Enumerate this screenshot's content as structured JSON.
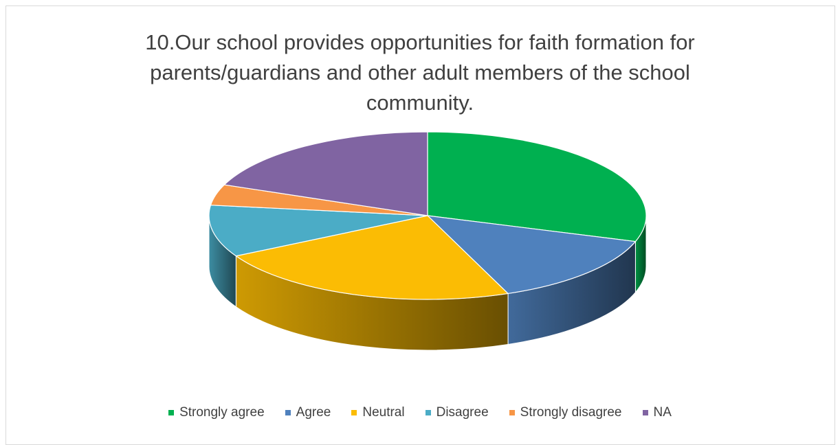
{
  "chart_data": {
    "type": "pie",
    "title_lines": [
      "10.Our school provides opportunities for faith formation for",
      "parents/guardians and other adult members of the school",
      "community."
    ],
    "categories": [
      "Strongly agree",
      "Agree",
      "Neutral",
      "Disagree",
      "Strongly disagree",
      "NA"
    ],
    "values": [
      30,
      14,
      23,
      10,
      4,
      19
    ],
    "colors": [
      "#00b050",
      "#4f81bd",
      "#fbbc04",
      "#4bacc6",
      "#f79646",
      "#8064a2"
    ],
    "three_d": true,
    "legend_position": "bottom"
  }
}
